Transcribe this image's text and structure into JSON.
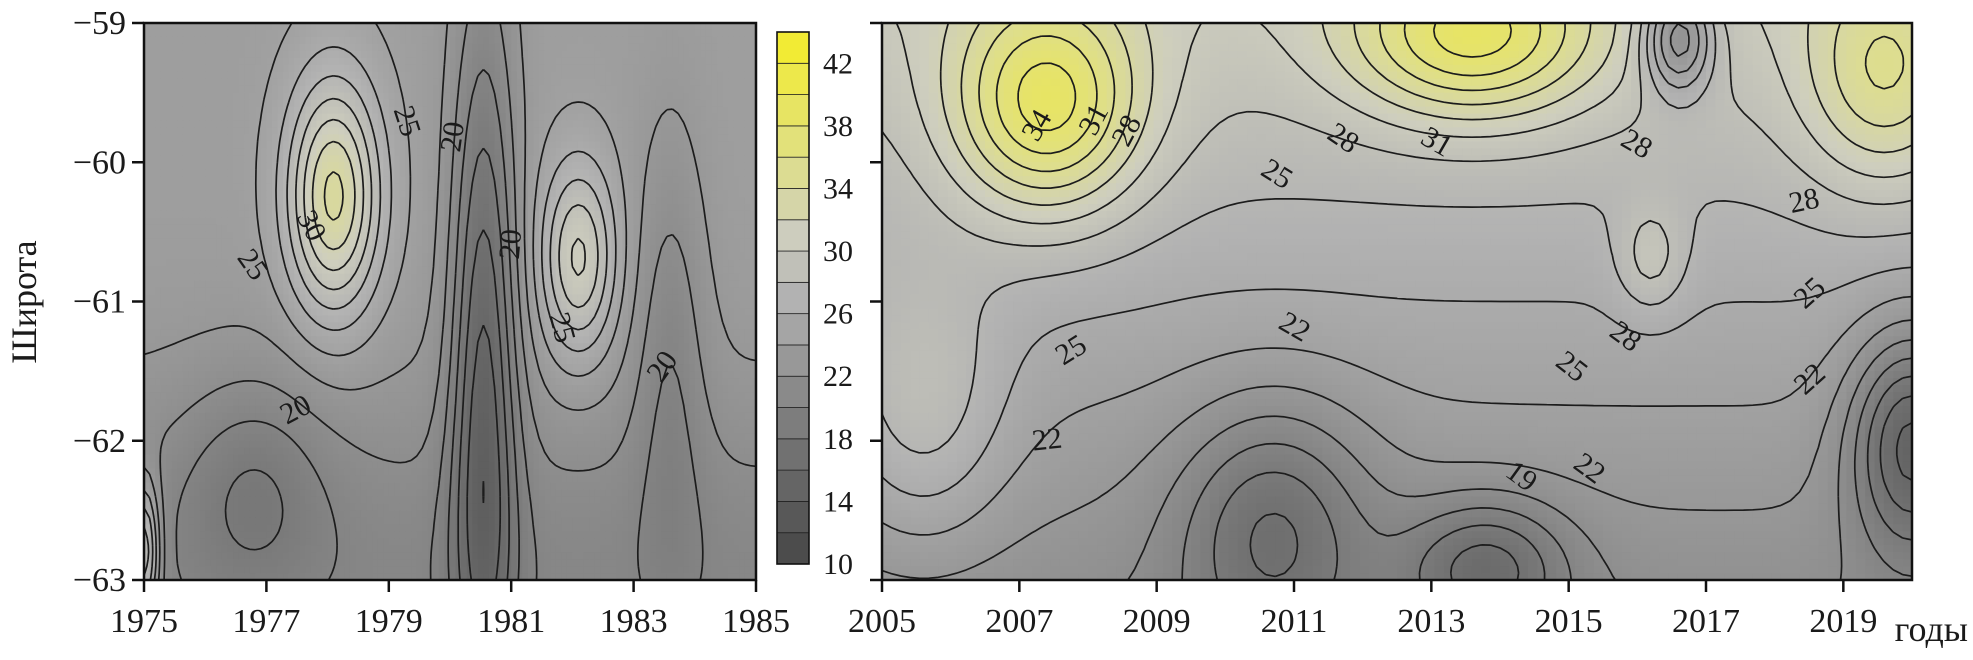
{
  "chart_data": [
    {
      "type": "heatmap",
      "ylabel": "Широта",
      "xlabel": "",
      "xlim": [
        1975,
        1985
      ],
      "ylim": [
        -63,
        -59
      ],
      "x_ticks": [
        "1975",
        "1977",
        "1979",
        "1981",
        "1983",
        "1985"
      ],
      "y_ticks": [
        "−59",
        "−60",
        "−61",
        "−62",
        "−63"
      ],
      "contour_labels": [
        "25",
        "20",
        "30",
        "25",
        "20",
        "20",
        "25",
        "20"
      ],
      "peaks": [
        {
          "x": 1978.1,
          "y": -60.25,
          "value": 34
        },
        {
          "x": 1982.1,
          "y": -60.7,
          "value": 31
        },
        {
          "x": 1980.6,
          "y": -62.6,
          "value": 14
        }
      ]
    },
    {
      "type": "heatmap",
      "xlabel": "годы",
      "ylabel": "",
      "xlim": [
        2005,
        2020
      ],
      "ylim": [
        -63,
        -59
      ],
      "x_ticks": [
        "2005",
        "2007",
        "2009",
        "2011",
        "2013",
        "2015",
        "2017",
        "2019"
      ],
      "contour_labels": [
        "34",
        "31",
        "28",
        "28",
        "31",
        "25",
        "28",
        "28",
        "25",
        "22",
        "25",
        "28",
        "25",
        "22",
        "22",
        "19",
        "22"
      ],
      "peaks": [
        {
          "x": 2007.4,
          "y": -59.6,
          "value": 40
        },
        {
          "x": 2013.6,
          "y": -59.1,
          "value": 40
        },
        {
          "x": 2019.6,
          "y": -59.4,
          "value": 36
        },
        {
          "x": 2016.2,
          "y": -60.7,
          "value": 31
        },
        {
          "x": 2010.7,
          "y": -62.6,
          "value": 17
        },
        {
          "x": 2013.8,
          "y": -62.9,
          "value": 15
        },
        {
          "x": 2020.0,
          "y": -62.0,
          "value": 14
        },
        {
          "x": 2016.6,
          "y": -59.1,
          "value": 20
        }
      ]
    }
  ],
  "colorbar": {
    "labels": [
      "42",
      "38",
      "34",
      "30",
      "26",
      "22",
      "18",
      "14",
      "10"
    ],
    "min": 10,
    "max": 44,
    "step": 2
  }
}
